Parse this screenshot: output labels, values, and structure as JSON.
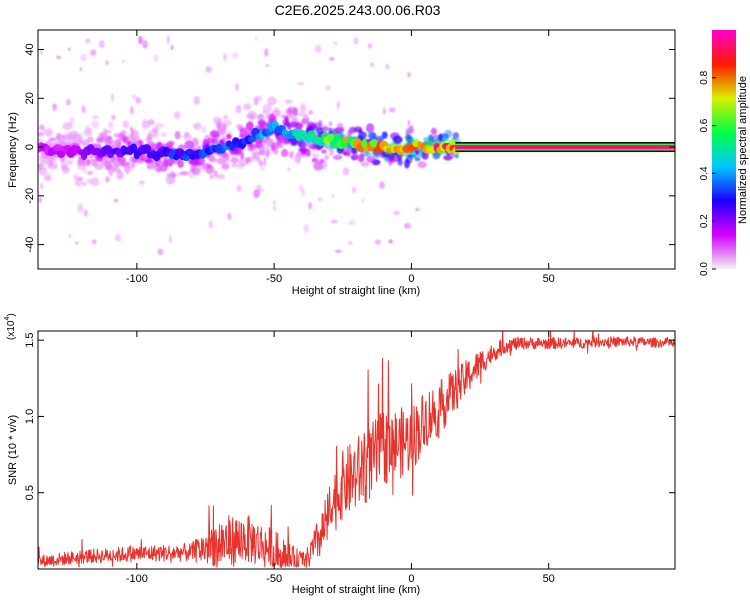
{
  "title": "C2E6.2025.243.00.06.R03",
  "colors": {
    "snr_line": "#e8322c",
    "frame": "#000000",
    "colorbar_stops": [
      "#f2f2f2",
      "#d400ff",
      "#1c00ff",
      "#00c8ff",
      "#00ff44",
      "#d8f000",
      "#ff1a00",
      "#ff00cc"
    ]
  },
  "chart_data": [
    {
      "type": "heatmap",
      "title": "",
      "xlabel": "Height of straight line (km)",
      "ylabel": "Frequency (Hz)",
      "xlim": [
        -136,
        96
      ],
      "ylim": [
        -50,
        48
      ],
      "xticks": [
        -100,
        -50,
        0,
        50
      ],
      "xtick_labels": [
        "-100",
        "-50",
        "0",
        "50"
      ],
      "yticks": [
        -40,
        -20,
        0,
        20,
        40
      ],
      "ytick_labels": [
        "-40",
        "-20",
        "0",
        "20",
        "40"
      ],
      "colorbar": {
        "label": "Normalized spectral amplitude",
        "range": [
          0,
          1
        ],
        "ticks": [
          0.0,
          0.2,
          0.4,
          0.6,
          0.8
        ],
        "tick_labels": [
          "0.0",
          "0.2",
          "0.4",
          "0.6",
          "0.8"
        ]
      },
      "ridge": {
        "x": [
          -136,
          -120,
          -100,
          -80,
          -60,
          -50,
          -40,
          -30,
          -20,
          -10,
          0,
          10,
          17,
          20,
          96
        ],
        "center": [
          -1,
          -2,
          -2,
          -3,
          3,
          8,
          4,
          3,
          1,
          0,
          0,
          0,
          0,
          0,
          0
        ],
        "amplitude": [
          0.15,
          0.2,
          0.3,
          0.35,
          0.4,
          0.45,
          0.55,
          0.7,
          0.8,
          0.9,
          0.95,
          0.95,
          0.95,
          1.0,
          1.0
        ]
      }
    },
    {
      "type": "line",
      "title": "",
      "xlabel": "Height of straight line (km)",
      "ylabel": "SNR (10 * v/v)",
      "multiplier_label": "(x10",
      "multiplier_exp": "4",
      "xlim": [
        -136,
        96
      ],
      "ylim": [
        0,
        1.56
      ],
      "xticks": [
        -100,
        -50,
        0,
        50
      ],
      "xtick_labels": [
        "-100",
        "-50",
        "0",
        "50"
      ],
      "yticks": [
        0.5,
        1.0,
        1.5
      ],
      "ytick_labels": [
        "0.5",
        "1.0",
        "1.5"
      ],
      "series": [
        {
          "name": "SNR",
          "trend_x": [
            -136,
            -120,
            -100,
            -80,
            -70,
            -60,
            -50,
            -45,
            -38,
            -32,
            -28,
            -25,
            -20,
            -15,
            -10,
            -5,
            0,
            5,
            10,
            15,
            20,
            25,
            30,
            35,
            40,
            50,
            60,
            70,
            80,
            96
          ],
          "trend_y": [
            0.05,
            0.08,
            0.1,
            0.11,
            0.17,
            0.2,
            0.12,
            0.08,
            0.06,
            0.25,
            0.45,
            0.55,
            0.62,
            0.7,
            0.8,
            0.82,
            0.85,
            0.98,
            1.05,
            1.15,
            1.25,
            1.35,
            1.42,
            1.47,
            1.48,
            1.48,
            1.48,
            1.49,
            1.49,
            1.48
          ],
          "noise_x": [
            -136,
            -80,
            -70,
            -50,
            -40,
            -30,
            -20,
            -10,
            0,
            10,
            20,
            30,
            40,
            96
          ],
          "noise_amp": [
            0.04,
            0.06,
            0.18,
            0.14,
            0.05,
            0.2,
            0.25,
            0.25,
            0.22,
            0.18,
            0.12,
            0.06,
            0.04,
            0.03
          ]
        }
      ]
    }
  ]
}
